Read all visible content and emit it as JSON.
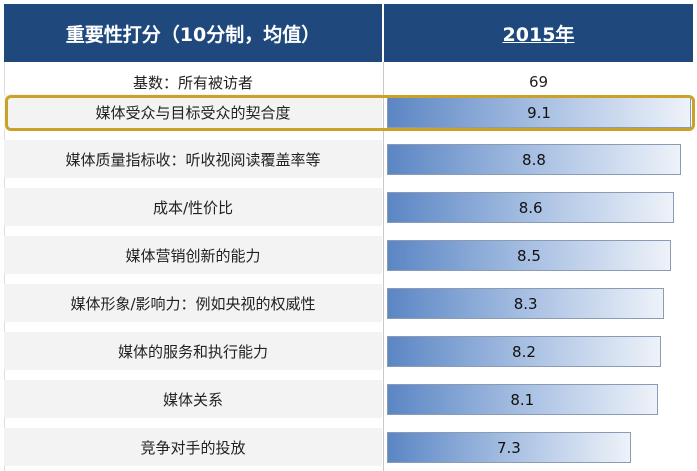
{
  "chart_data": {
    "type": "bar",
    "title": "重要性打分（10分制，均值）",
    "column_header": "2015年",
    "base_label": "基数：所有被访者",
    "base_value": "69",
    "categories": [
      "媒体受众与目标受众的契合度",
      "媒体质量指标收：听收视阅读覆盖率等",
      "成本/性价比",
      "媒体营销创新的能力",
      "媒体形象/影响力：例如央视的权威性",
      "媒体的服务和执行能力",
      "媒体关系",
      "竞争对手的投放"
    ],
    "values": [
      9.1,
      8.8,
      8.6,
      8.5,
      8.3,
      8.2,
      8.1,
      7.3
    ],
    "highlighted_index": 0,
    "xlim": [
      0,
      9.1
    ]
  },
  "colors": {
    "header": "#1f497d",
    "highlight": "#c9a227",
    "bar": "#5b86c4"
  }
}
